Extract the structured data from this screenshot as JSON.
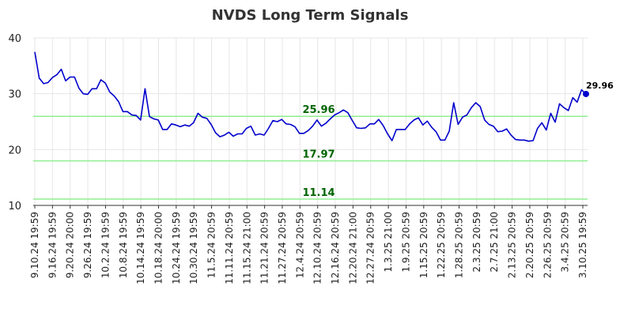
{
  "chart_data": {
    "type": "line",
    "title": "NVDS Long Term Signals",
    "xlabel": "",
    "ylabel": "",
    "ylim": [
      10,
      40
    ],
    "yticks": [
      "10",
      "20",
      "30",
      "40"
    ],
    "grid": true,
    "x_tick_labels": [
      "9.10.24 19:59",
      "9.16.24 19:59",
      "9.20.24 20:00",
      "9.26.24 19:59",
      "10.2.24 19:59",
      "10.8.24 19:59",
      "10.14.24 19:59",
      "10.18.24 20:00",
      "10.24.24 19:59",
      "10.30.24 19:59",
      "11.5.24 20:59",
      "11.11.24 20:59",
      "11.15.24 21:00",
      "11.21.24 20:59",
      "11.27.24 20:59",
      "12.4.24 20:59",
      "12.10.24 20:59",
      "12.16.24 20:59",
      "12.20.24 21:00",
      "12.27.24 20:59",
      "1.3.25 21:00",
      "1.9.25 20:59",
      "1.15.25 20:59",
      "1.22.25 20:59",
      "1.28.25 20:59",
      "2.3.25 20:59",
      "2.7.25 21:00",
      "2.13.25 20:59",
      "2.20.25 20:59",
      "2.26.25 20:59",
      "3.4.25 20:59",
      "3.10.25 19:59"
    ],
    "series": [
      {
        "color": "#0000cc",
        "values": [
          37.5,
          32.8,
          31.8,
          32.0,
          32.9,
          33.4,
          34.4,
          32.3,
          33.0,
          33.0,
          31.0,
          30.0,
          29.9,
          30.9,
          30.9,
          32.5,
          31.9,
          30.3,
          29.6,
          28.6,
          26.8,
          26.8,
          26.2,
          26.1,
          25.3,
          30.9,
          25.9,
          25.5,
          25.3,
          23.6,
          23.6,
          24.6,
          24.4,
          24.1,
          24.4,
          24.2,
          24.8,
          26.5,
          25.8,
          25.6,
          24.5,
          23.0,
          22.3,
          22.6,
          23.1,
          22.4,
          22.8,
          22.8,
          23.8,
          24.2,
          22.6,
          22.8,
          22.6,
          23.8,
          25.2,
          25.0,
          25.4,
          24.6,
          24.5,
          24.1,
          22.9,
          22.9,
          23.4,
          24.2,
          25.3,
          24.2,
          24.7,
          25.5,
          26.2,
          26.6,
          27.1,
          26.6,
          25.2,
          23.9,
          23.8,
          23.9,
          24.6,
          24.6,
          25.4,
          24.3,
          22.8,
          21.6,
          23.6,
          23.6,
          23.6,
          24.6,
          25.3,
          25.7,
          24.4,
          25.1,
          24.0,
          23.2,
          21.7,
          21.7,
          23.3,
          28.4,
          24.5,
          25.8,
          26.2,
          27.5,
          28.4,
          27.7,
          25.3,
          24.5,
          24.2,
          23.2,
          23.3,
          23.7,
          22.6,
          21.8,
          21.7,
          21.7,
          21.5,
          21.6,
          23.8,
          24.8,
          23.5,
          26.5,
          24.9,
          28.2,
          27.5,
          27.0,
          29.3,
          28.5,
          30.7,
          29.96
        ]
      }
    ],
    "reference_lines": [
      {
        "value": 25.96,
        "label": "25.96",
        "color": "#90ee90"
      },
      {
        "value": 17.97,
        "label": "17.97",
        "color": "#90ee90"
      },
      {
        "value": 11.14,
        "label": "11.14",
        "color": "#90ee90"
      }
    ],
    "last_value_label": "29.96",
    "colors": {
      "line": "#0000cc",
      "marker": "#0000cc",
      "reference": "#90ee90",
      "reference_text": "#006400",
      "grid": "#e6e6e6"
    }
  }
}
